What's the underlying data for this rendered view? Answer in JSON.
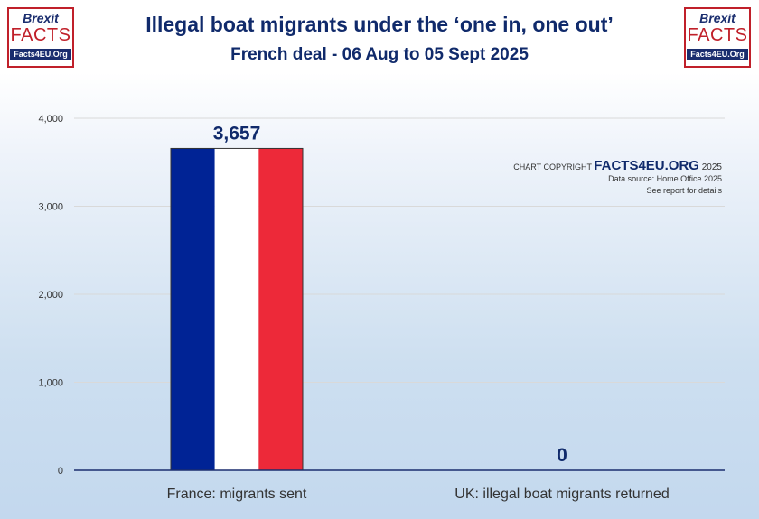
{
  "title": "Illegal boat migrants under the ‘one in, one out’",
  "subtitle": "French deal - 06 Aug to 05 Sept 2025",
  "logo": {
    "line1": "Brexit",
    "line2": "FACTS",
    "line3": "Facts4EU.Org"
  },
  "credit": {
    "prefix": "CHART COPYRIGHT ",
    "brand": "FACTS4EU.ORG",
    "year": " 2025",
    "source": "Data source: Home Office 2025",
    "note": "See report for details"
  },
  "colors": {
    "title": "#102a6b",
    "flag_blue": "#002395",
    "flag_white": "#ffffff",
    "flag_red": "#ed2939",
    "axis": "#1a2d6e",
    "grid": "#d9d9d9"
  },
  "chart_data": {
    "type": "bar",
    "categories": [
      "France: migrants sent",
      "UK: illegal boat migrants returned"
    ],
    "values": [
      3657,
      0
    ],
    "data_labels": [
      "3,657",
      "0"
    ],
    "ylim": [
      0,
      4000
    ],
    "yticks": [
      0,
      1000,
      2000,
      3000,
      4000
    ],
    "ytick_labels": [
      "0",
      "1,000",
      "2,000",
      "3,000",
      "4,000"
    ],
    "xlabel": "",
    "ylabel": "",
    "grid": true,
    "bar_style": "french-flag"
  }
}
